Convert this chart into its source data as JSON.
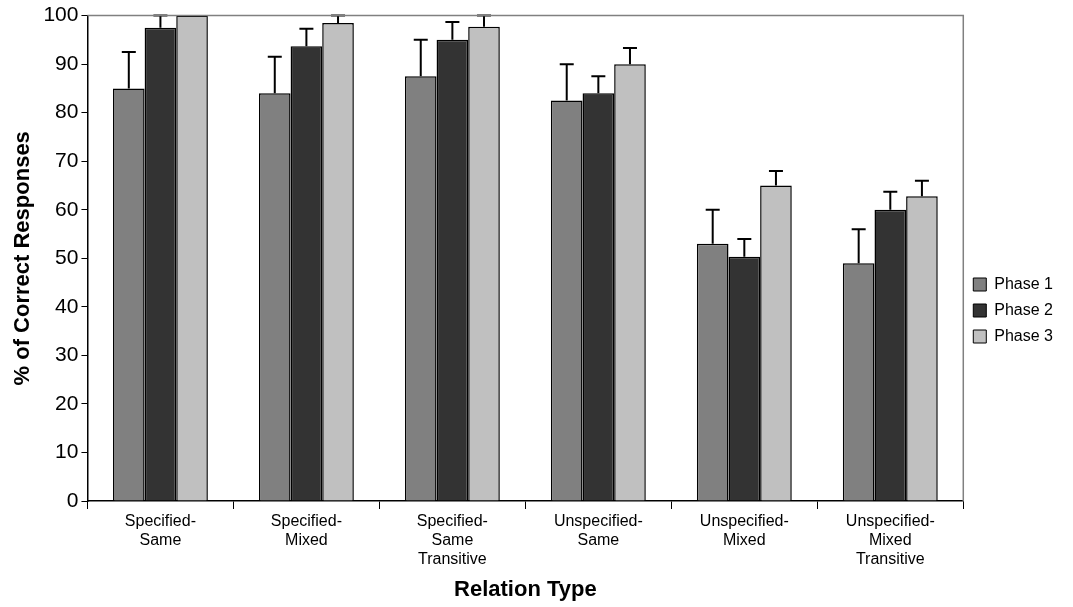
{
  "chart_data": {
    "type": "bar",
    "xlabel": "Relation Type",
    "ylabel": "% of Correct Responses",
    "categories": [
      "Specified- Same",
      "Specified- Mixed",
      "Specified- Same Transitive",
      "Unspecified- Same",
      "Unspecified- Mixed",
      "Unspecified- Mixed Transitive"
    ],
    "series": [
      {
        "name": "Phase 1",
        "color": "#808080",
        "values": [
          85,
          84,
          87.5,
          82.5,
          53,
          49
        ],
        "errors": [
          [
            85,
            92.5
          ],
          [
            84,
            91.5
          ],
          [
            87.5,
            95
          ],
          [
            82.5,
            90
          ],
          [
            53,
            60
          ],
          [
            49,
            56
          ]
        ]
      },
      {
        "name": "Phase 2",
        "color": "#333333",
        "values": [
          97.5,
          93.7,
          95,
          84,
          50.3,
          60
        ],
        "errors": [
          [
            97.5,
            100
          ],
          [
            93.7,
            97.3
          ],
          [
            95,
            98.7
          ],
          [
            84,
            87.5
          ],
          [
            50.3,
            54
          ],
          [
            60,
            63.7
          ]
        ]
      },
      {
        "name": "Phase 3",
        "color": "#c0c0c0",
        "values": [
          100,
          98.5,
          97.7,
          90,
          65,
          62.8
        ],
        "errors": [
          null,
          [
            98.5,
            100
          ],
          [
            97.7,
            100
          ],
          [
            90,
            93.3
          ],
          [
            65,
            68
          ],
          [
            62.8,
            66
          ]
        ]
      }
    ],
    "ylim": [
      0,
      100
    ],
    "yticks": [
      0,
      10,
      20,
      30,
      40,
      50,
      60,
      70,
      80,
      90,
      100
    ],
    "grid": false,
    "legend": "right"
  }
}
